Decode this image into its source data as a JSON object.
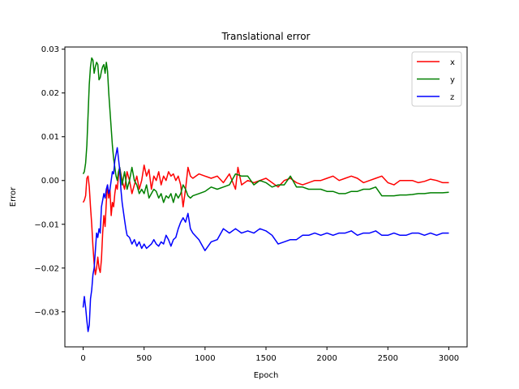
{
  "chart_data": {
    "type": "line",
    "title": "Translational error",
    "xlabel": "Epoch",
    "ylabel": "Error",
    "xlim": [
      -150,
      3150
    ],
    "ylim": [
      -0.038,
      0.0305
    ],
    "x_ticks": [
      0,
      500,
      1000,
      1500,
      2000,
      2500,
      3000
    ],
    "x_tick_labels": [
      "0",
      "500",
      "1000",
      "1500",
      "2000",
      "2500",
      "3000"
    ],
    "y_ticks": [
      -0.03,
      -0.02,
      -0.01,
      0.0,
      0.01,
      0.02,
      0.03
    ],
    "y_tick_labels": [
      "−0.03",
      "−0.02",
      "−0.01",
      "0.00",
      "0.01",
      "0.02",
      "0.03"
    ],
    "grid": false,
    "legend": "top-right",
    "series": [
      {
        "name": "x",
        "color": "#ff0000",
        "x": [
          0,
          10,
          20,
          30,
          40,
          50,
          60,
          70,
          80,
          90,
          100,
          110,
          120,
          130,
          140,
          150,
          160,
          170,
          180,
          190,
          200,
          210,
          220,
          230,
          240,
          250,
          260,
          270,
          280,
          290,
          300,
          320,
          340,
          360,
          380,
          400,
          420,
          440,
          460,
          480,
          500,
          520,
          540,
          560,
          580,
          600,
          620,
          640,
          660,
          680,
          700,
          720,
          740,
          760,
          780,
          800,
          820,
          840,
          860,
          880,
          900,
          950,
          1000,
          1050,
          1100,
          1150,
          1200,
          1250,
          1270,
          1300,
          1350,
          1400,
          1450,
          1500,
          1550,
          1600,
          1650,
          1700,
          1750,
          1800,
          1850,
          1900,
          1950,
          2000,
          2050,
          2100,
          2150,
          2200,
          2250,
          2300,
          2350,
          2400,
          2450,
          2500,
          2550,
          2600,
          2650,
          2700,
          2750,
          2800,
          2850,
          2900,
          2950,
          3000
        ],
        "values": [
          -0.005,
          -0.0045,
          -0.0035,
          0.0005,
          0.001,
          -0.0015,
          -0.006,
          -0.01,
          -0.015,
          -0.019,
          -0.0215,
          -0.02,
          -0.0175,
          -0.02,
          -0.021,
          -0.018,
          -0.012,
          -0.008,
          -0.0105,
          -0.005,
          -0.001,
          -0.004,
          -0.002,
          -0.008,
          -0.005,
          -0.006,
          -0.003,
          -0.001,
          -0.002,
          0.001,
          0.003,
          0.0,
          -0.002,
          0.002,
          0.0,
          -0.003,
          -0.001,
          0.001,
          -0.002,
          0.0,
          0.0035,
          0.001,
          0.0025,
          -0.002,
          0.001,
          0.0,
          0.002,
          -0.001,
          0.001,
          0.0,
          0.002,
          0.001,
          0.0015,
          0.0,
          0.001,
          -0.001,
          -0.006,
          -0.002,
          0.003,
          0.001,
          0.0005,
          0.0015,
          0.001,
          0.0005,
          0.001,
          -0.0005,
          0.0015,
          -0.002,
          0.003,
          -0.001,
          0.0,
          -0.0005,
          0.0,
          0.0005,
          -0.0005,
          -0.0015,
          0.0,
          0.0005,
          -0.0005,
          -0.001,
          -0.0005,
          0.0,
          0.0,
          0.0005,
          0.001,
          0.0,
          0.0005,
          0.001,
          0.0005,
          -0.0005,
          0.0,
          0.0005,
          0.001,
          -0.0005,
          -0.001,
          0.0,
          0.0,
          0.0,
          -0.0005,
          -0.0002,
          0.0003,
          0.0,
          -0.0005,
          -0.0005
        ]
      },
      {
        "name": "y",
        "color": "#008000",
        "x": [
          0,
          10,
          20,
          30,
          40,
          50,
          60,
          70,
          80,
          90,
          100,
          110,
          120,
          130,
          140,
          150,
          160,
          170,
          180,
          190,
          200,
          210,
          220,
          230,
          240,
          250,
          260,
          270,
          280,
          290,
          300,
          320,
          340,
          360,
          380,
          400,
          420,
          440,
          460,
          480,
          500,
          520,
          540,
          560,
          580,
          600,
          620,
          640,
          660,
          680,
          700,
          720,
          740,
          760,
          780,
          800,
          820,
          840,
          860,
          880,
          900,
          950,
          1000,
          1050,
          1100,
          1150,
          1200,
          1250,
          1300,
          1350,
          1400,
          1450,
          1500,
          1550,
          1600,
          1650,
          1700,
          1750,
          1800,
          1850,
          1900,
          1950,
          2000,
          2050,
          2100,
          2150,
          2200,
          2250,
          2300,
          2350,
          2400,
          2450,
          2500,
          2550,
          2600,
          2650,
          2700,
          2750,
          2800,
          2850,
          2900,
          2950,
          3000
        ],
        "values": [
          0.0015,
          0.002,
          0.004,
          0.008,
          0.015,
          0.022,
          0.026,
          0.028,
          0.0275,
          0.0245,
          0.026,
          0.027,
          0.0265,
          0.023,
          0.0235,
          0.025,
          0.026,
          0.0265,
          0.0245,
          0.027,
          0.025,
          0.02,
          0.016,
          0.012,
          0.008,
          0.005,
          0.003,
          0.001,
          0.0,
          0.002,
          0.003,
          -0.001,
          0.002,
          -0.002,
          0.0,
          0.003,
          0.0,
          -0.001,
          -0.003,
          -0.002,
          -0.003,
          -0.001,
          -0.004,
          -0.003,
          -0.002,
          -0.0025,
          -0.004,
          -0.003,
          -0.005,
          -0.0035,
          -0.004,
          -0.003,
          -0.005,
          -0.003,
          -0.004,
          -0.003,
          -0.001,
          -0.002,
          -0.0035,
          -0.004,
          -0.0035,
          -0.003,
          -0.0025,
          -0.0015,
          -0.002,
          -0.0015,
          -0.001,
          0.0015,
          0.001,
          0.001,
          -0.001,
          0.0,
          -0.0005,
          -0.0015,
          -0.001,
          -0.001,
          0.001,
          -0.0015,
          -0.0015,
          -0.002,
          -0.002,
          -0.002,
          -0.0025,
          -0.0025,
          -0.003,
          -0.003,
          -0.0025,
          -0.0025,
          -0.002,
          -0.002,
          -0.0015,
          -0.0035,
          -0.0035,
          -0.0035,
          -0.0033,
          -0.0033,
          -0.0032,
          -0.003,
          -0.003,
          -0.0028,
          -0.0028,
          -0.0028,
          -0.0027
        ]
      },
      {
        "name": "z",
        "color": "#0000ff",
        "x": [
          0,
          10,
          20,
          30,
          40,
          50,
          60,
          70,
          80,
          90,
          100,
          110,
          120,
          130,
          140,
          150,
          160,
          170,
          180,
          190,
          200,
          210,
          220,
          230,
          240,
          250,
          260,
          270,
          280,
          290,
          300,
          310,
          320,
          330,
          340,
          350,
          360,
          380,
          400,
          420,
          440,
          460,
          480,
          500,
          520,
          540,
          560,
          580,
          600,
          620,
          640,
          660,
          680,
          700,
          720,
          740,
          760,
          780,
          800,
          820,
          840,
          860,
          880,
          900,
          950,
          1000,
          1050,
          1100,
          1150,
          1200,
          1250,
          1300,
          1350,
          1400,
          1450,
          1500,
          1550,
          1600,
          1650,
          1700,
          1750,
          1800,
          1850,
          1900,
          1950,
          2000,
          2050,
          2100,
          2150,
          2200,
          2250,
          2300,
          2350,
          2400,
          2450,
          2500,
          2550,
          2600,
          2650,
          2700,
          2750,
          2800,
          2850,
          2900,
          2950,
          3000
        ],
        "values": [
          -0.029,
          -0.0265,
          -0.029,
          -0.032,
          -0.0345,
          -0.033,
          -0.027,
          -0.025,
          -0.0215,
          -0.02,
          -0.016,
          -0.012,
          -0.013,
          -0.011,
          -0.012,
          -0.006,
          -0.0045,
          -0.003,
          -0.004,
          -0.002,
          -0.001,
          -0.003,
          -0.002,
          0.0,
          0.002,
          0.0015,
          0.0045,
          0.006,
          0.0075,
          0.005,
          0.0025,
          -0.002,
          -0.005,
          -0.007,
          -0.009,
          -0.011,
          -0.0125,
          -0.013,
          -0.0145,
          -0.0135,
          -0.015,
          -0.014,
          -0.0155,
          -0.0145,
          -0.0155,
          -0.015,
          -0.0145,
          -0.0135,
          -0.0145,
          -0.015,
          -0.014,
          -0.0145,
          -0.0125,
          -0.0135,
          -0.015,
          -0.0135,
          -0.013,
          -0.011,
          -0.0095,
          -0.0085,
          -0.0095,
          -0.0075,
          -0.011,
          -0.012,
          -0.0135,
          -0.016,
          -0.014,
          -0.0135,
          -0.011,
          -0.012,
          -0.011,
          -0.012,
          -0.0115,
          -0.012,
          -0.011,
          -0.0115,
          -0.0125,
          -0.0145,
          -0.014,
          -0.0135,
          -0.0135,
          -0.0125,
          -0.0125,
          -0.012,
          -0.0125,
          -0.012,
          -0.0125,
          -0.012,
          -0.012,
          -0.0115,
          -0.0125,
          -0.012,
          -0.012,
          -0.0115,
          -0.0125,
          -0.0125,
          -0.012,
          -0.0125,
          -0.0125,
          -0.012,
          -0.012,
          -0.0125,
          -0.012,
          -0.0125,
          -0.012,
          -0.012
        ]
      }
    ]
  }
}
